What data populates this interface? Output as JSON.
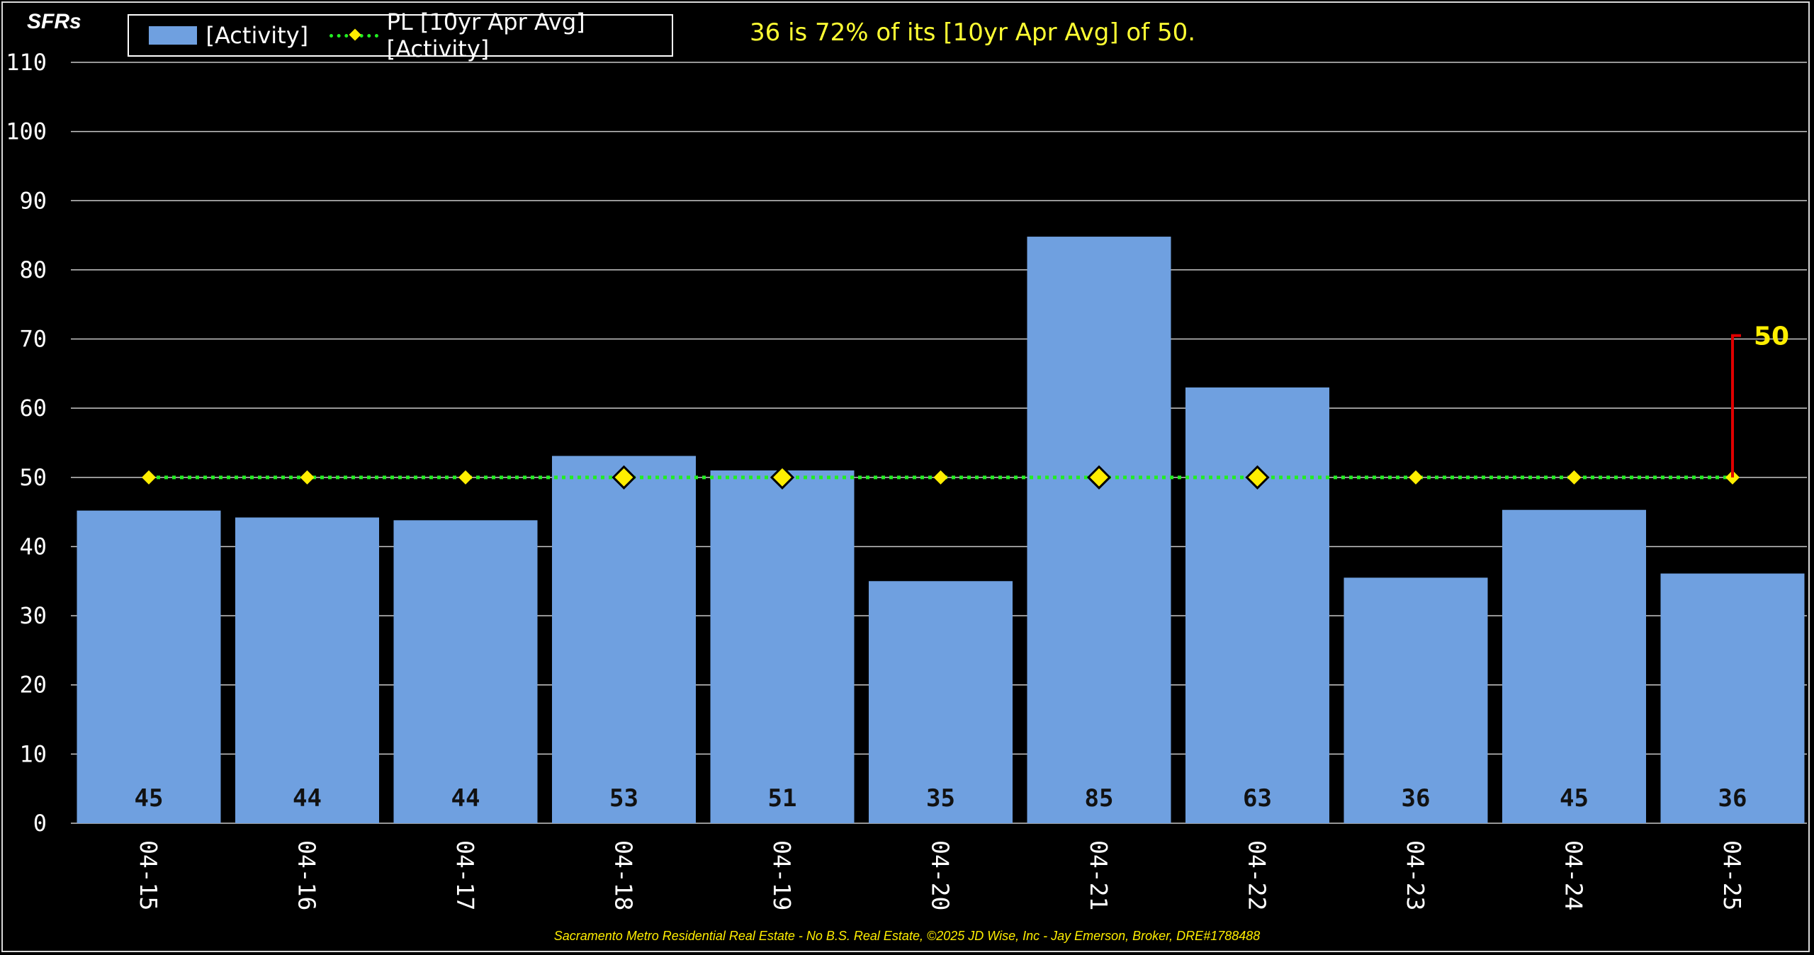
{
  "header": {
    "unit_label": "SFRs",
    "annotation": "36 is 72% of its [10yr Apr Avg] of 50."
  },
  "legend": {
    "bar_label": "[Activity]",
    "line_label": "PL [10yr Apr Avg] [Activity]"
  },
  "footer": {
    "text": "Sacramento Metro Residential Real Estate - No B.S. Real Estate, ©2025 JD Wise, Inc - Jay Emerson, Broker, DRE#1788488"
  },
  "colors": {
    "bar": "#6fa0e0",
    "avg_line": "#22ee22",
    "marker": "#ffee00",
    "bracket": "#e00000",
    "annotation": "#ffff33"
  },
  "chart_data": {
    "type": "bar",
    "categories": [
      "04-15",
      "04-16",
      "04-17",
      "04-18",
      "04-19",
      "04-20",
      "04-21",
      "04-22",
      "04-23",
      "04-24",
      "04-25"
    ],
    "values": [
      45.2,
      44.2,
      43.8,
      53.1,
      51.0,
      35.0,
      84.8,
      63.0,
      35.5,
      45.3,
      36.1
    ],
    "value_labels": [
      "45",
      "44",
      "44",
      "53",
      "51",
      "35",
      "85",
      "63",
      "36",
      "45",
      "36"
    ],
    "reference_line": {
      "name": "PL [10yr Apr Avg] [Activity]",
      "value": 50,
      "outlined_markers_at": [
        "04-18",
        "04-19",
        "04-21",
        "04-22"
      ]
    },
    "callout": {
      "category": "04-25",
      "from": 50,
      "to": 70.5,
      "label": "50"
    },
    "ylim": [
      0,
      110
    ],
    "yticks": [
      0,
      10,
      20,
      30,
      40,
      50,
      60,
      70,
      80,
      90,
      100,
      110
    ],
    "grid": true,
    "legend_position": "top-left"
  }
}
